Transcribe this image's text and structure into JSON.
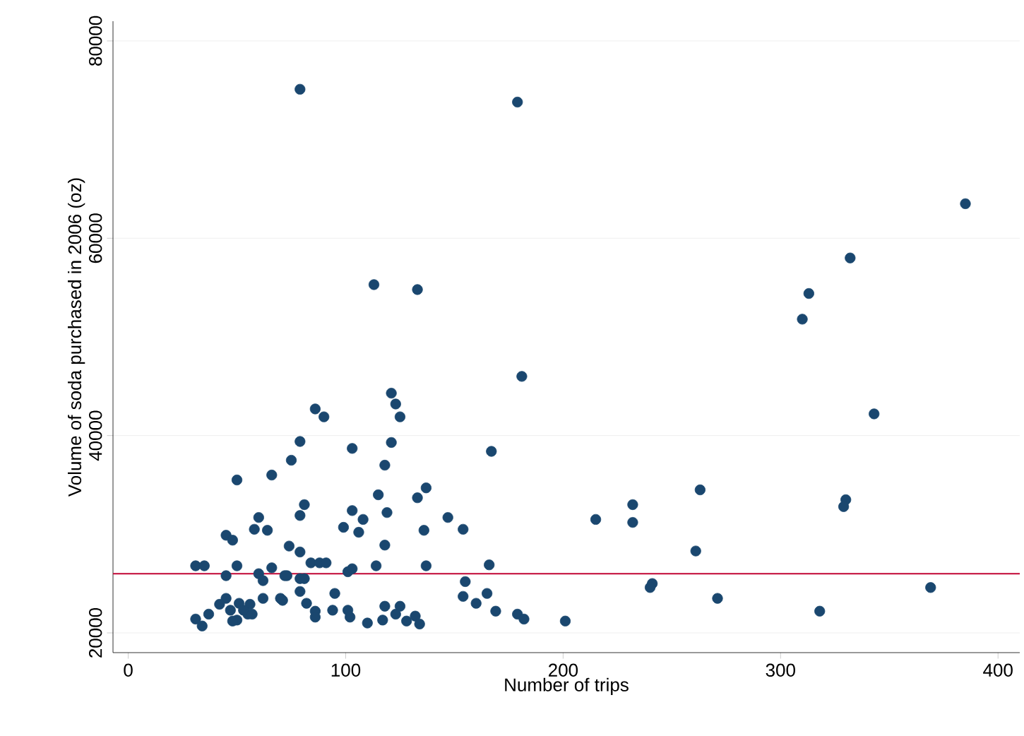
{
  "chart_data": {
    "type": "scatter",
    "xlabel": "Number of trips",
    "ylabel": "Volume of soda purchased in 2006 (oz)",
    "xlim": [
      -7,
      410
    ],
    "ylim": [
      18000,
      82000
    ],
    "xticks": [
      0,
      100,
      200,
      300,
      400
    ],
    "yticks": [
      20000,
      40000,
      60000,
      80000
    ],
    "grid": "y",
    "marker": "circle",
    "ref_lines": [
      {
        "axis": "y",
        "value": 26000,
        "color": "#c10534"
      }
    ],
    "series": [
      {
        "color": "#1a476f",
        "x": [
          79,
          179,
          385,
          343,
          332,
          313,
          310,
          263,
          215,
          232,
          232,
          261,
          330,
          329,
          241,
          240,
          271,
          201,
          318,
          369,
          113,
          133,
          181,
          121,
          123,
          125,
          86,
          90,
          79,
          121,
          103,
          167,
          75,
          118,
          137,
          133,
          115,
          81,
          79,
          103,
          119,
          108,
          99,
          106,
          136,
          147,
          154,
          118,
          74,
          79,
          84,
          88,
          91,
          114,
          137,
          166,
          101,
          103,
          73,
          79,
          81,
          79,
          95,
          155,
          154,
          160,
          165,
          169,
          179,
          182,
          71,
          82,
          86,
          86,
          94,
          101,
          102,
          110,
          118,
          125,
          117,
          123,
          128,
          132,
          134,
          50,
          66,
          60,
          58,
          64,
          45,
          48,
          31,
          35,
          50,
          66,
          60,
          62,
          45,
          72,
          70,
          62,
          45,
          42,
          47,
          51,
          56,
          55,
          50,
          48,
          31,
          34,
          37,
          53,
          57
        ],
        "values": [
          75100,
          73800,
          63500,
          42200,
          58000,
          54400,
          51800,
          34500,
          31500,
          33000,
          31200,
          28300,
          33500,
          32800,
          25000,
          24600,
          23500,
          21200,
          22200,
          24600,
          55300,
          54800,
          46000,
          44300,
          43200,
          41900,
          42700,
          41900,
          39400,
          39300,
          38700,
          38400,
          37500,
          37000,
          34700,
          33700,
          34000,
          33000,
          31900,
          32400,
          32200,
          31500,
          30700,
          30200,
          30400,
          31700,
          30500,
          28900,
          28800,
          28200,
          27100,
          27100,
          27100,
          26800,
          26800,
          26900,
          26200,
          26500,
          25800,
          25500,
          25500,
          24200,
          24000,
          25200,
          23700,
          23000,
          24000,
          22200,
          21900,
          21400,
          23300,
          23000,
          22200,
          21600,
          22300,
          22300,
          21600,
          21000,
          22700,
          22700,
          21300,
          21900,
          21200,
          21700,
          20900,
          35500,
          36000,
          31700,
          30500,
          30400,
          29900,
          29400,
          26800,
          26800,
          26800,
          26600,
          26000,
          25300,
          25800,
          25800,
          23500,
          23500,
          23500,
          22900,
          22300,
          23000,
          22900,
          21900,
          21300,
          21200,
          21400,
          20700,
          21900,
          22300,
          21900
        ]
      }
    ]
  }
}
